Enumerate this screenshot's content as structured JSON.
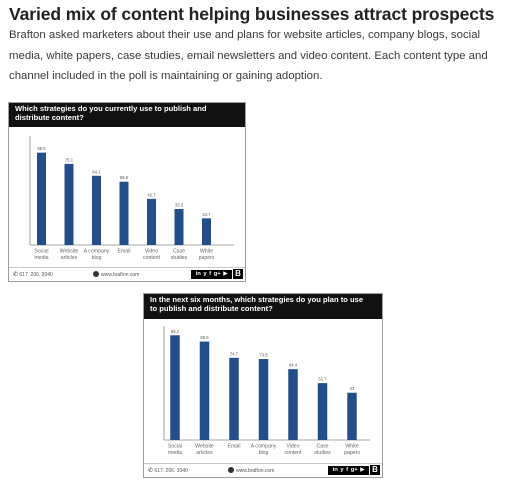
{
  "article": {
    "heading": "Varied mix of content helping businesses attract prospects",
    "body": "Brafton asked marketers about their use and plans for website articles, company blogs, social media, white papers, case studies, email newsletters and video content. Each content type and channel included in the poll is maintaining or gaining adoption."
  },
  "colors": {
    "bar": "#234e8c",
    "title_bg": "#111111",
    "axis": "#8a8a8a"
  },
  "footer": {
    "phone": "617. 206. 3040",
    "website": "www.brafton.com",
    "social": [
      "in",
      "y",
      "f",
      "g+",
      "▶"
    ],
    "logo": "B"
  },
  "chart_data": [
    {
      "type": "bar",
      "title": "Which strategies do you currently use to publish and distribute content?",
      "categories": [
        [
          "Social",
          "media"
        ],
        [
          "Website",
          "articles"
        ],
        [
          "A company",
          "blog"
        ],
        [
          "Email"
        ],
        [
          "Video",
          "content"
        ],
        [
          "Case",
          "studies"
        ],
        [
          "White",
          "papers"
        ]
      ],
      "values": [
        85.5,
        75.1,
        64.1,
        58.6,
        42.7,
        33.3,
        24.7
      ],
      "value_labels": [
        "85.5",
        "75.1",
        "64.1",
        "58.6",
        "42.7",
        "33.3",
        "24.7"
      ],
      "ylim": [
        0,
        100
      ],
      "xlabel": "",
      "ylabel": "",
      "grid": false,
      "legend": "none"
    },
    {
      "type": "bar",
      "title": "In the next six months, which strategies do you plan to use to publish and distribute content?",
      "categories": [
        [
          "Social",
          "media"
        ],
        [
          "Website",
          "articles"
        ],
        [
          "Email"
        ],
        [
          "A company",
          "blog"
        ],
        [
          "Video",
          "content"
        ],
        [
          "Case",
          "studies"
        ],
        [
          "White",
          "papers"
        ]
      ],
      "values": [
        95.2,
        89.5,
        74.7,
        73.6,
        64.4,
        51.7,
        43.0
      ],
      "value_labels": [
        "95.2",
        "89.5",
        "74.7",
        "73.6",
        "64.4",
        "51.7",
        "43"
      ],
      "ylim": [
        0,
        100
      ],
      "xlabel": "",
      "ylabel": "",
      "grid": false,
      "legend": "none"
    }
  ]
}
